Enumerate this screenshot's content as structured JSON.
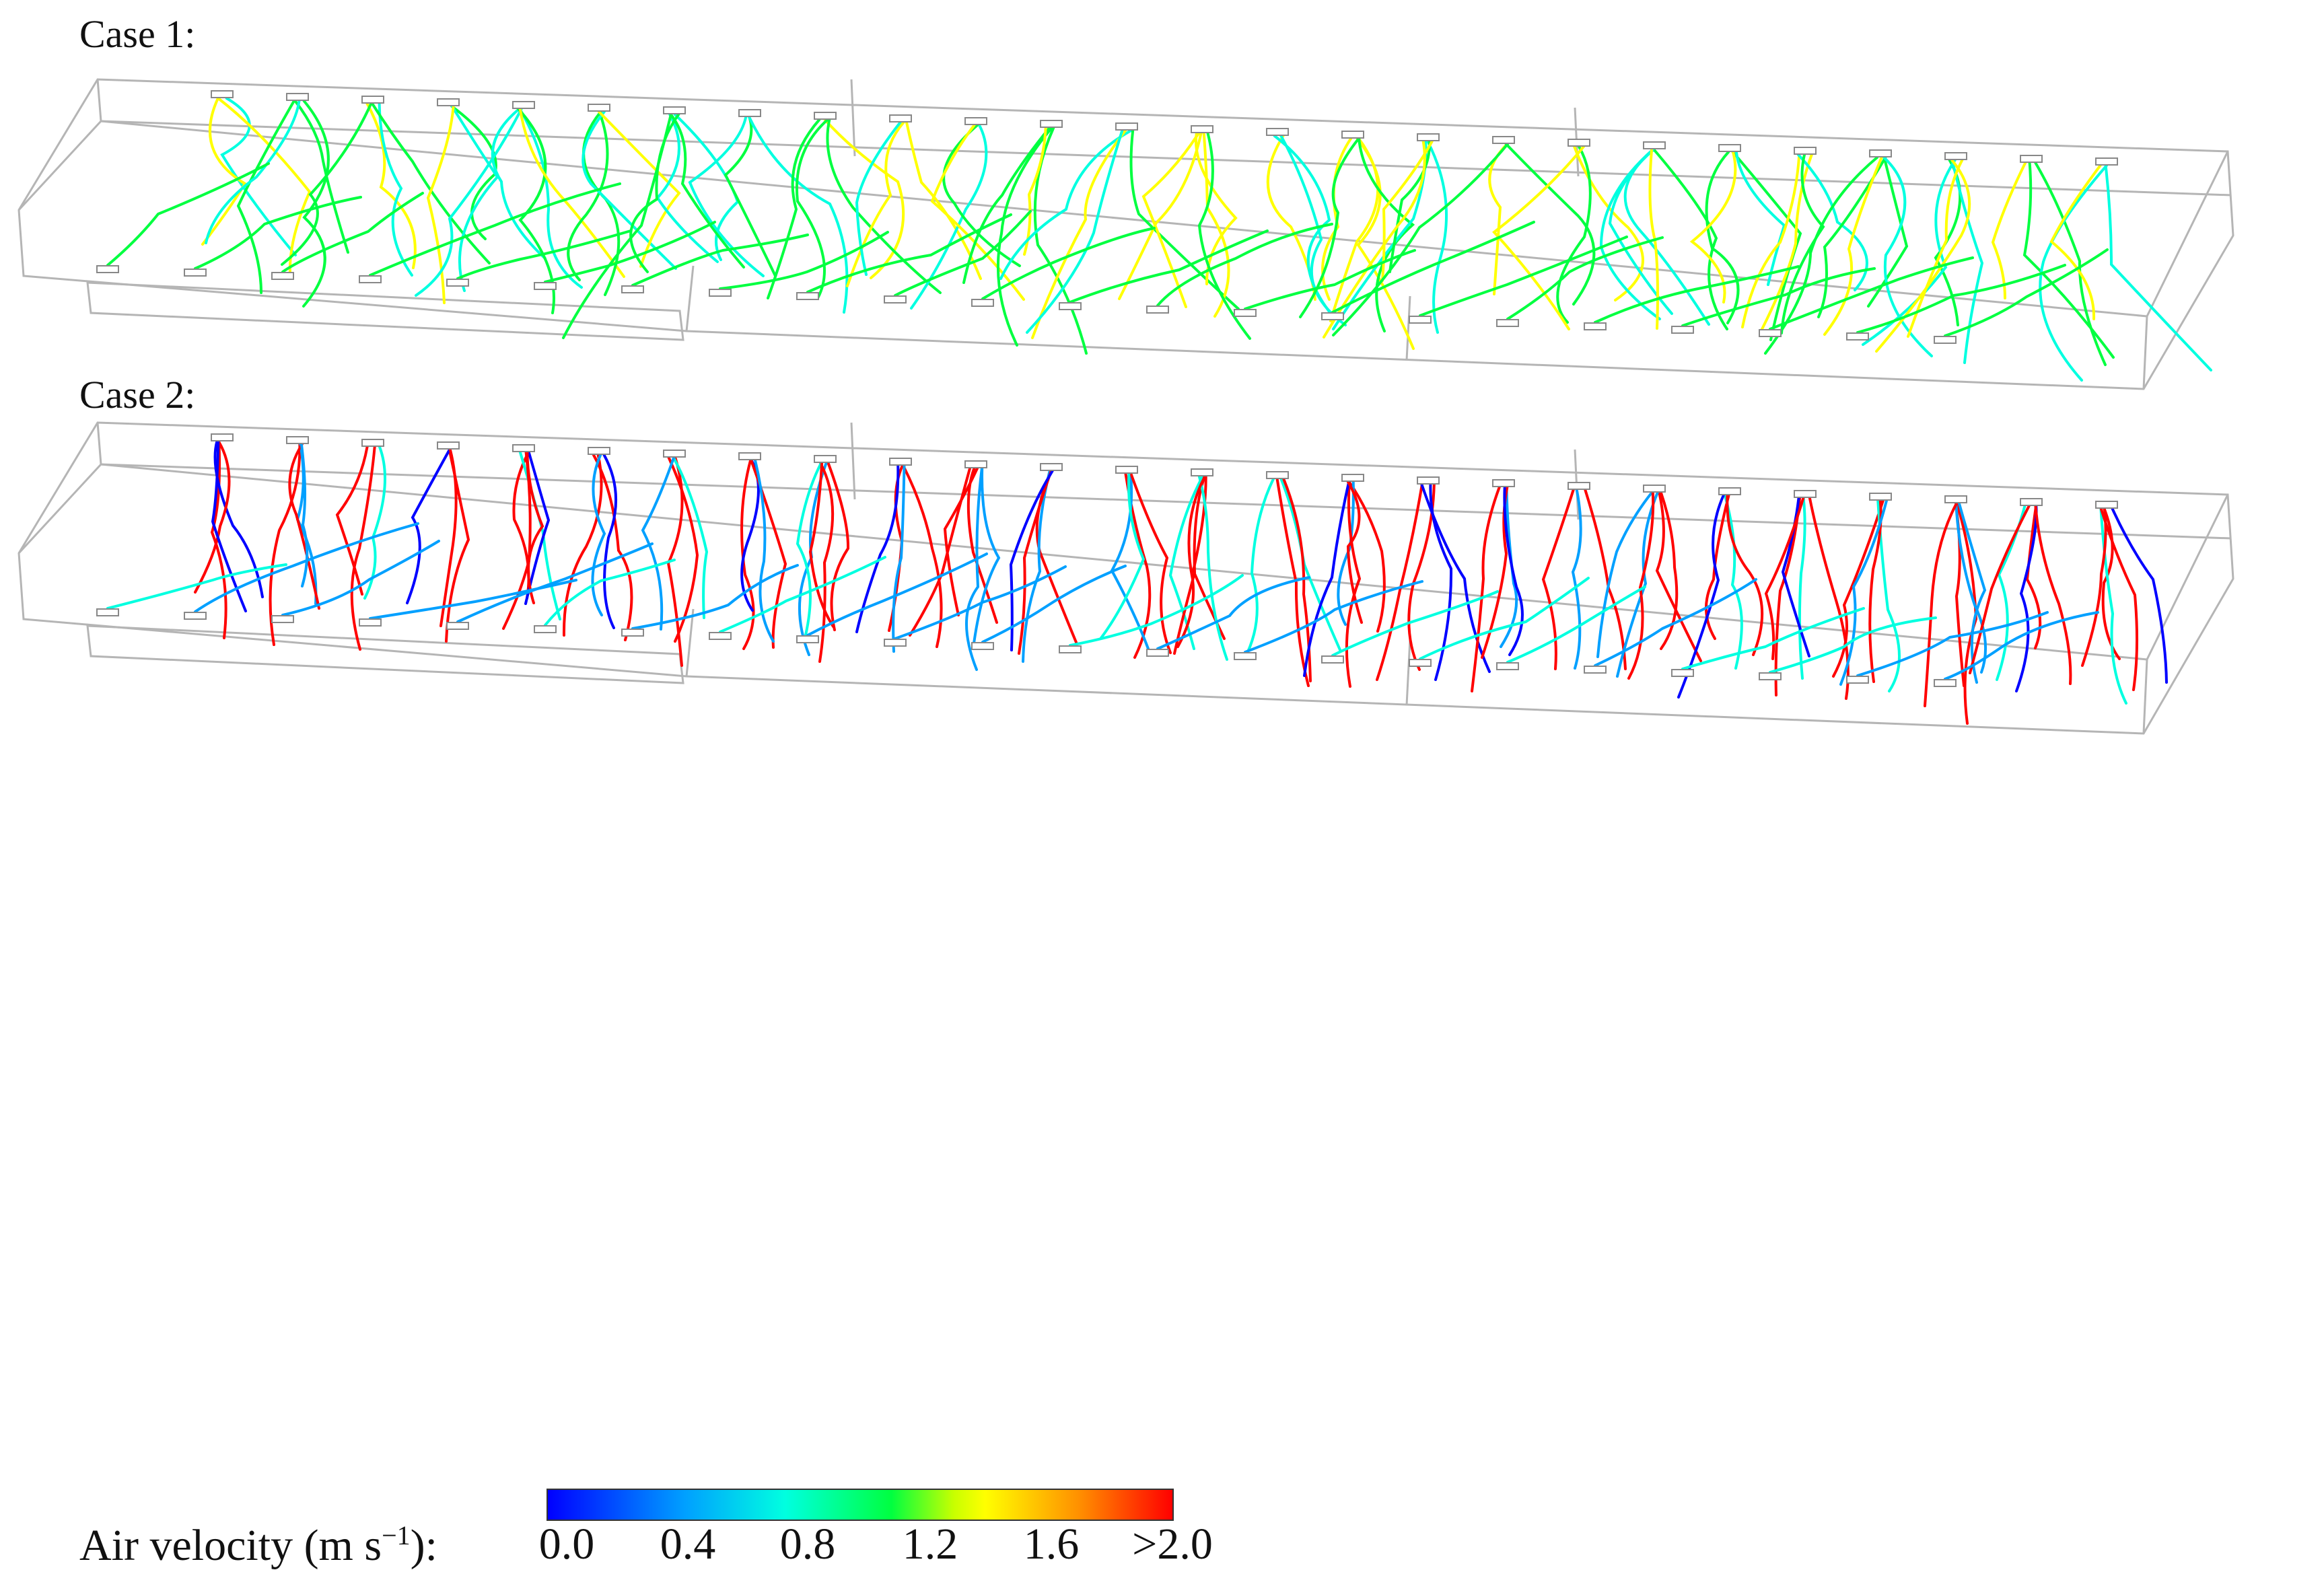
{
  "panels": [
    {
      "label": "Case 1:"
    },
    {
      "label": "Case 2:"
    }
  ],
  "colorbar": {
    "title": "Air velocity (m s",
    "title_sup": "−1",
    "title_end": "):",
    "ticks": [
      "0.0",
      "0.4",
      "0.8",
      "1.2",
      "1.6",
      ">2.0"
    ],
    "colors": [
      "#0000ff",
      "#00a0ff",
      "#00ffe0",
      "#00ff40",
      "#ffff00",
      "#ff9000",
      "#ff0000"
    ]
  }
}
